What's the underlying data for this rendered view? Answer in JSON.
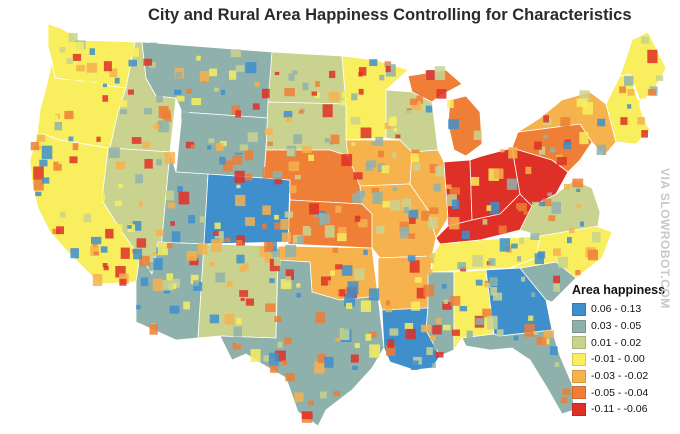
{
  "title": "City and Rural Area Happiness Controlling for Characteristics",
  "watermark": "VIA SLOWROBOT.COM",
  "legend": {
    "title": "Area happiness",
    "items": [
      {
        "label": "0.06 - 0.13",
        "color": "#3f8fcc"
      },
      {
        "label": "0.03 - 0.05",
        "color": "#8fb1ab"
      },
      {
        "label": "0.01 - 0.02",
        "color": "#c9d38f"
      },
      {
        "label": "-0.01 - 0.00",
        "color": "#f8ee5e"
      },
      {
        "label": "-0.03 - -0.02",
        "color": "#f6b24d"
      },
      {
        "label": "-0.05 - -0.04",
        "color": "#ef7e36"
      },
      {
        "label": "-0.11 - -0.06",
        "color": "#df3027"
      }
    ]
  },
  "regions": [
    {
      "name": "Washington",
      "class": 3
    },
    {
      "name": "Oregon",
      "class": 3
    },
    {
      "name": "California",
      "class": 3
    },
    {
      "name": "Idaho",
      "class": 2
    },
    {
      "name": "Nevada",
      "class": 2
    },
    {
      "name": "Montana",
      "class": 1
    },
    {
      "name": "Wyoming",
      "class": 1
    },
    {
      "name": "Utah",
      "class": 1
    },
    {
      "name": "Colorado",
      "class": 0
    },
    {
      "name": "Arizona",
      "class": 1
    },
    {
      "name": "New Mexico",
      "class": 2
    },
    {
      "name": "North Dakota",
      "class": 2
    },
    {
      "name": "South Dakota",
      "class": 2
    },
    {
      "name": "Nebraska",
      "class": 5
    },
    {
      "name": "Kansas",
      "class": 5
    },
    {
      "name": "Oklahoma",
      "class": 4
    },
    {
      "name": "Texas",
      "class": 1
    },
    {
      "name": "Minnesota",
      "class": 3
    },
    {
      "name": "Iowa",
      "class": 4
    },
    {
      "name": "Missouri",
      "class": 4
    },
    {
      "name": "Arkansas",
      "class": 4
    },
    {
      "name": "Louisiana",
      "class": 0
    },
    {
      "name": "Wisconsin",
      "class": 2
    },
    {
      "name": "Michigan",
      "class": 5
    },
    {
      "name": "Illinois",
      "class": 4
    },
    {
      "name": "Indiana",
      "class": 6
    },
    {
      "name": "Ohio",
      "class": 6
    },
    {
      "name": "Kentucky",
      "class": 6
    },
    {
      "name": "Tennessee",
      "class": 3
    },
    {
      "name": "Mississippi",
      "class": 1
    },
    {
      "name": "Alabama",
      "class": 3
    },
    {
      "name": "Georgia",
      "class": 0
    },
    {
      "name": "Florida",
      "class": 1
    },
    {
      "name": "South Carolina",
      "class": 1
    },
    {
      "name": "North Carolina",
      "class": 3
    },
    {
      "name": "Virginia",
      "class": 2
    },
    {
      "name": "West Virginia",
      "class": 6
    },
    {
      "name": "Pennsylvania",
      "class": 5
    },
    {
      "name": "New York",
      "class": 4
    },
    {
      "name": "New England",
      "class": 3
    },
    {
      "name": "Maine",
      "class": 3
    }
  ]
}
